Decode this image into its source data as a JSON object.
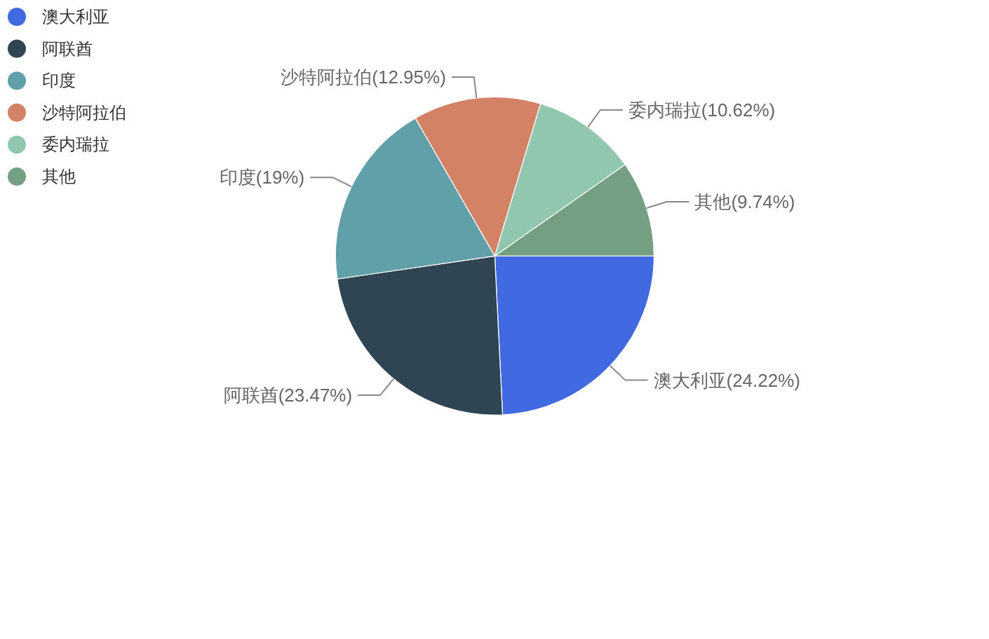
{
  "chart_data": {
    "type": "pie",
    "categories": [
      "澳大利亚",
      "阿联酋",
      "印度",
      "沙特阿拉伯",
      "委内瑞拉",
      "其他"
    ],
    "values": [
      24.22,
      23.47,
      19,
      12.95,
      10.62,
      9.74
    ],
    "colors": [
      "#4169e1",
      "#2f4554",
      "#61a0a8",
      "#d48265",
      "#91c7ae",
      "#749f83"
    ],
    "value_labels": [
      "澳大利亚(24.22%)",
      "阿联酋(23.47%)",
      "印度(19%)",
      "沙特阿拉伯(12.95%)",
      "委内瑞拉(10.62%)",
      "其他(9.74%)"
    ],
    "legend": "top left"
  }
}
